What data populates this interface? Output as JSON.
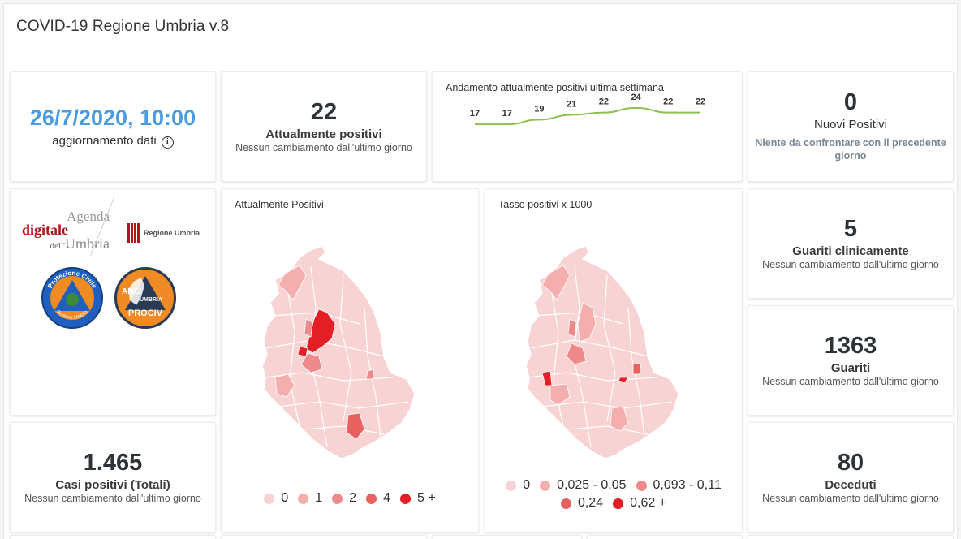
{
  "app": {
    "title": "COVID-19 Regione Umbria v.8"
  },
  "update": {
    "datetime": "26/7/2020, 10:00",
    "label": "aggiornamento dati",
    "info_icon": "info-icon"
  },
  "kpis": {
    "attualmente_positivi": {
      "value": "22",
      "label": "Attualmente positivi",
      "sub": "Nessun cambiamento dall'ultimo giorno"
    },
    "nuovi_positivi": {
      "value": "0",
      "label": "Nuovi Positivi",
      "sub": "Niente da confrontare con il precedente giorno"
    },
    "guariti_clinicamente": {
      "value": "5",
      "label": "Guariti clinicamente",
      "sub": "Nessun cambiamento dall'ultimo giorno"
    },
    "guariti": {
      "value": "1363",
      "label": "Guariti",
      "sub": "Nessun cambiamento dall'ultimo giorno"
    },
    "casi_totali": {
      "value": "1.465",
      "label": "Casi positivi (Totali)",
      "sub": "Nessun cambiamento dall'ultimo giorno"
    },
    "deceduti": {
      "value": "80",
      "label": "Deceduti",
      "sub": "Nessun cambiamento dall'ultimo giorno"
    }
  },
  "trend": {
    "title": "Andamento attualmente positivi ultima settimana",
    "color": "#8cc152"
  },
  "chart_data": {
    "type": "line",
    "title": "Andamento attualmente positivi ultima settimana",
    "x": [
      1,
      2,
      3,
      4,
      5,
      6,
      7,
      8
    ],
    "values": [
      17,
      17,
      19,
      21,
      22,
      24,
      22,
      22
    ],
    "data_labels": [
      "17",
      "17",
      "19",
      "21",
      "22",
      "24",
      "22",
      "22"
    ],
    "grid": false
  },
  "logos": {
    "agenda_line1": "Agenda",
    "agenda_line2": "digitale",
    "agenda_line3_a": "dell'",
    "agenda_line3_b": "Umbria",
    "regione": "Regione Umbria",
    "protezione_top": "Protezione Civile",
    "protezione_bottom": "Regione Umbria",
    "anci_1": "ANCI",
    "anci_2": "UMBRIA",
    "anci_3": "PROCIV"
  },
  "map_positivi": {
    "title": "Attualmente Positivi",
    "legend": [
      {
        "label": "0",
        "color": "#f8d3d3"
      },
      {
        "label": "1",
        "color": "#f4aeae"
      },
      {
        "label": "2",
        "color": "#ee8a8a"
      },
      {
        "label": "4",
        "color": "#e86262"
      },
      {
        "label": "5 +",
        "color": "#e31e24"
      }
    ]
  },
  "map_tasso": {
    "title": "Tasso positivi x 1000",
    "legend": [
      {
        "label": "0",
        "color": "#f8d3d3"
      },
      {
        "label": "0,025 - 0,05",
        "color": "#f4aeae"
      },
      {
        "label": "0,093 - 0,11",
        "color": "#ee8a8a"
      },
      {
        "label": "0,24",
        "color": "#e86262"
      },
      {
        "label": "0,62 +",
        "color": "#e31e24"
      }
    ]
  }
}
